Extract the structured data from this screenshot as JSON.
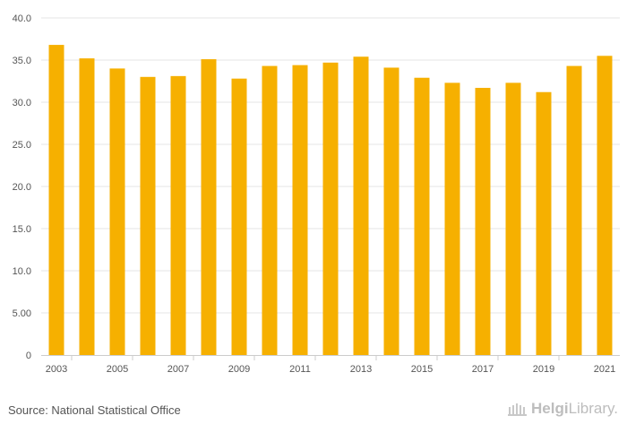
{
  "chart_data": {
    "type": "bar",
    "categories": [
      "2003",
      "2004",
      "2005",
      "2006",
      "2007",
      "2008",
      "2009",
      "2010",
      "2011",
      "2012",
      "2013",
      "2014",
      "2015",
      "2016",
      "2017",
      "2018",
      "2019",
      "2020",
      "2021"
    ],
    "x_tick_labels": [
      "2003",
      "2005",
      "2007",
      "2009",
      "2011",
      "2013",
      "2015",
      "2017",
      "2019",
      "2021"
    ],
    "values": [
      36.8,
      35.2,
      34.0,
      33.0,
      33.1,
      35.1,
      32.8,
      34.3,
      34.4,
      34.7,
      35.4,
      34.1,
      32.9,
      32.3,
      31.7,
      32.3,
      31.2,
      34.3,
      35.5
    ],
    "y_ticks": [
      "0",
      "5.00",
      "10.0",
      "15.0",
      "20.0",
      "25.0",
      "30.0",
      "35.0",
      "40.0"
    ],
    "ylim": [
      0,
      40
    ],
    "bar_color": "#f6b000",
    "grid": true,
    "title": "",
    "xlabel": "",
    "ylabel": ""
  },
  "footer": {
    "source": "Source: National Statistical Office",
    "brand_strong": "Helgi",
    "brand_rest": "Library."
  }
}
